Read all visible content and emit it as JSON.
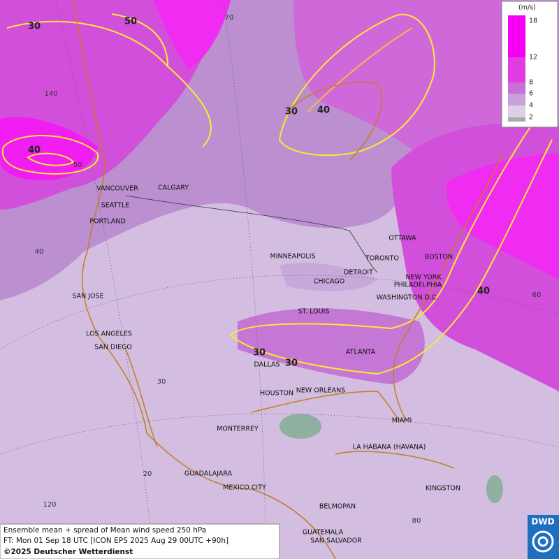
{
  "map": {
    "cities": [
      "VANCOUVER",
      "CALGARY",
      "SEATTLE",
      "PORTLAND",
      "MINNEAPOLIS",
      "TORONTO",
      "OTTAWA",
      "BOSTON",
      "DETROIT",
      "NEW YORK",
      "PHILADELPHIA",
      "CHICAGO",
      "WASHINGTON D.C.",
      "SAN JOSE",
      "ST. LOUIS",
      "LOS ANGELES",
      "SAN DIEGO",
      "ATLANTA",
      "DALLAS",
      "HOUSTON",
      "NEW ORLEANS",
      "MIAMI",
      "MONTERREY",
      "LA HABANA (HAVANA)",
      "GUADALAJARA",
      "MEXICO CITY",
      "KINGSTON",
      "BELMOPAN",
      "GUATEMALA",
      "SAN SALVADOR"
    ],
    "contour_labels": [
      30,
      50,
      40,
      30,
      40,
      40,
      30,
      30
    ],
    "graticule_labels": [
      70,
      140,
      50,
      40,
      60,
      30,
      20,
      120,
      80
    ]
  },
  "legend": {
    "unit": "(m/s)",
    "ticks": [
      18,
      12,
      8,
      6,
      4,
      2
    ]
  },
  "caption": [
    "Ensemble mean + spread of Mean wind speed 250 hPa",
    "FT: Mon 01 Sep 18 UTC [ICON EPS 2025 Aug 29 00UTC +90h]",
    "©2025 Deutscher Wetterdienst"
  ],
  "logo": "DWD"
}
